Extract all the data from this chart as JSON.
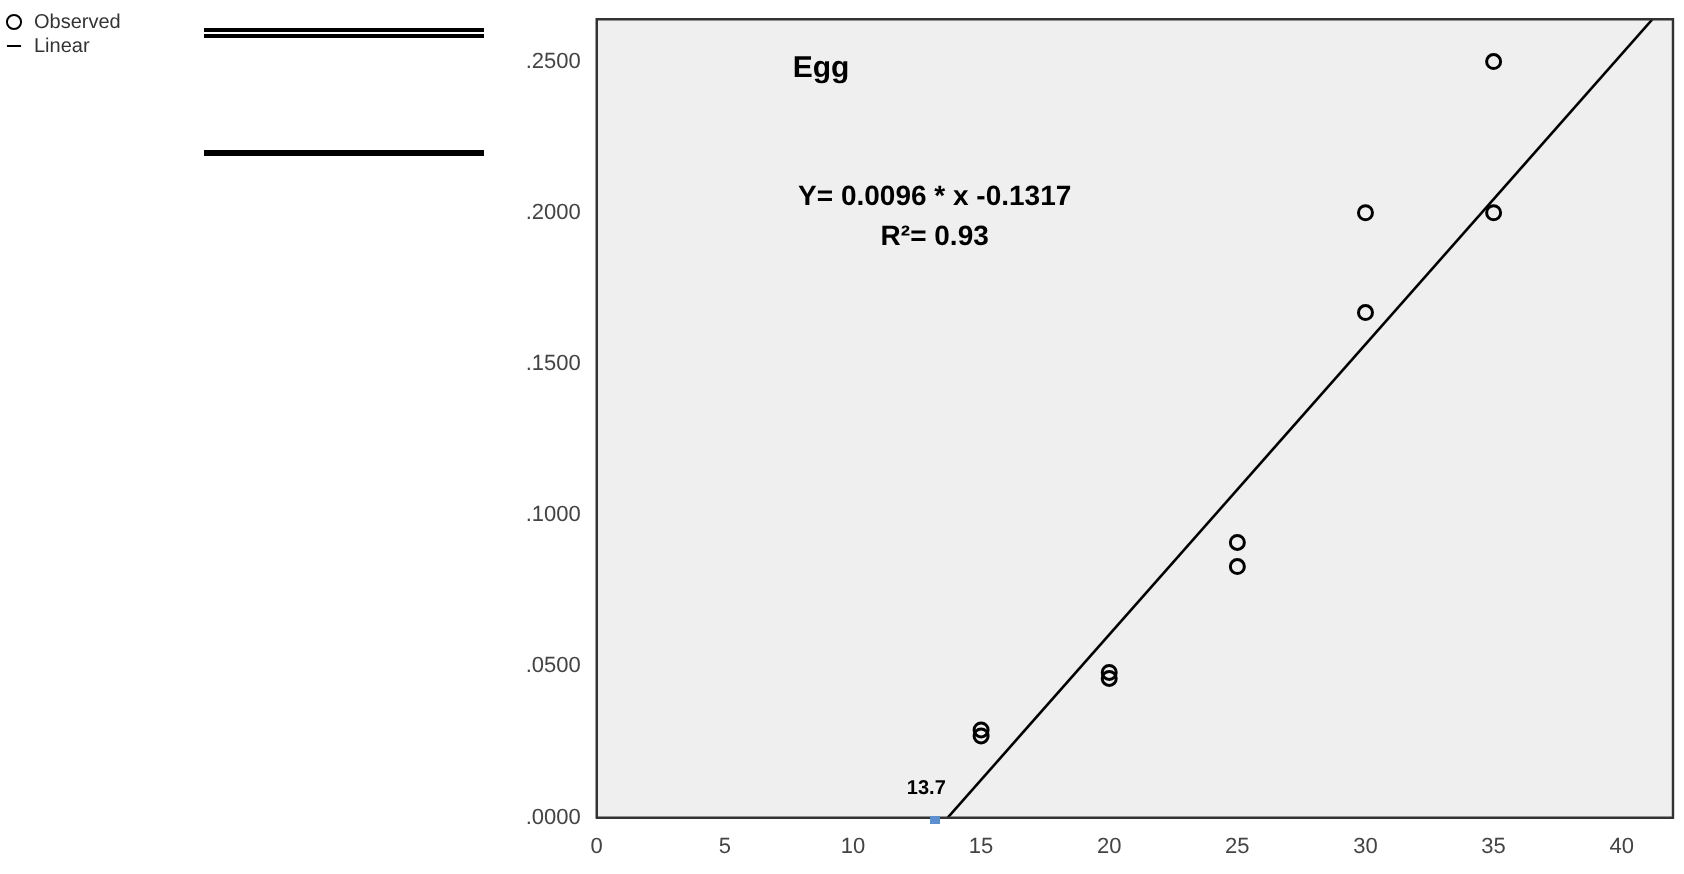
{
  "chart_data": {
    "type": "scatter",
    "title": "Egg",
    "xlim": [
      0,
      42
    ],
    "xticks": [
      0,
      5,
      10,
      15,
      20,
      25,
      30,
      35,
      40
    ],
    "ylim": [
      0,
      0.264
    ],
    "yticks": [
      {
        "value": 0,
        "label": ".0000"
      },
      {
        "value": 0.05,
        "label": ".0500"
      },
      {
        "value": 0.1,
        "label": ".1000"
      },
      {
        "value": 0.15,
        "label": ".1500"
      },
      {
        "value": 0.2,
        "label": ".2000"
      },
      {
        "value": 0.25,
        "label": ".2500"
      }
    ],
    "series": [
      {
        "name": "Observed",
        "type": "scatter",
        "color": "#000000",
        "marker": "circle",
        "x": [
          15,
          15,
          20,
          20,
          25,
          25,
          30,
          30,
          35,
          35
        ],
        "values": [
          0.029,
          0.027,
          0.048,
          0.046,
          0.091,
          0.083,
          0.2,
          0.167,
          0.25,
          0.2
        ]
      },
      {
        "name": "Linear",
        "type": "line",
        "color": "#000000",
        "marker": "none",
        "line_style": "solid",
        "x": [
          13.7,
          41.2
        ],
        "values": [
          0,
          0.264
        ]
      }
    ],
    "annotations": [
      "Y= 0.0096 * x -0.1317",
      "R²= 0.93",
      {
        "text": "13.7",
        "x": 13.7,
        "y": 0
      }
    ],
    "grid": false,
    "legend": "top left"
  }
}
